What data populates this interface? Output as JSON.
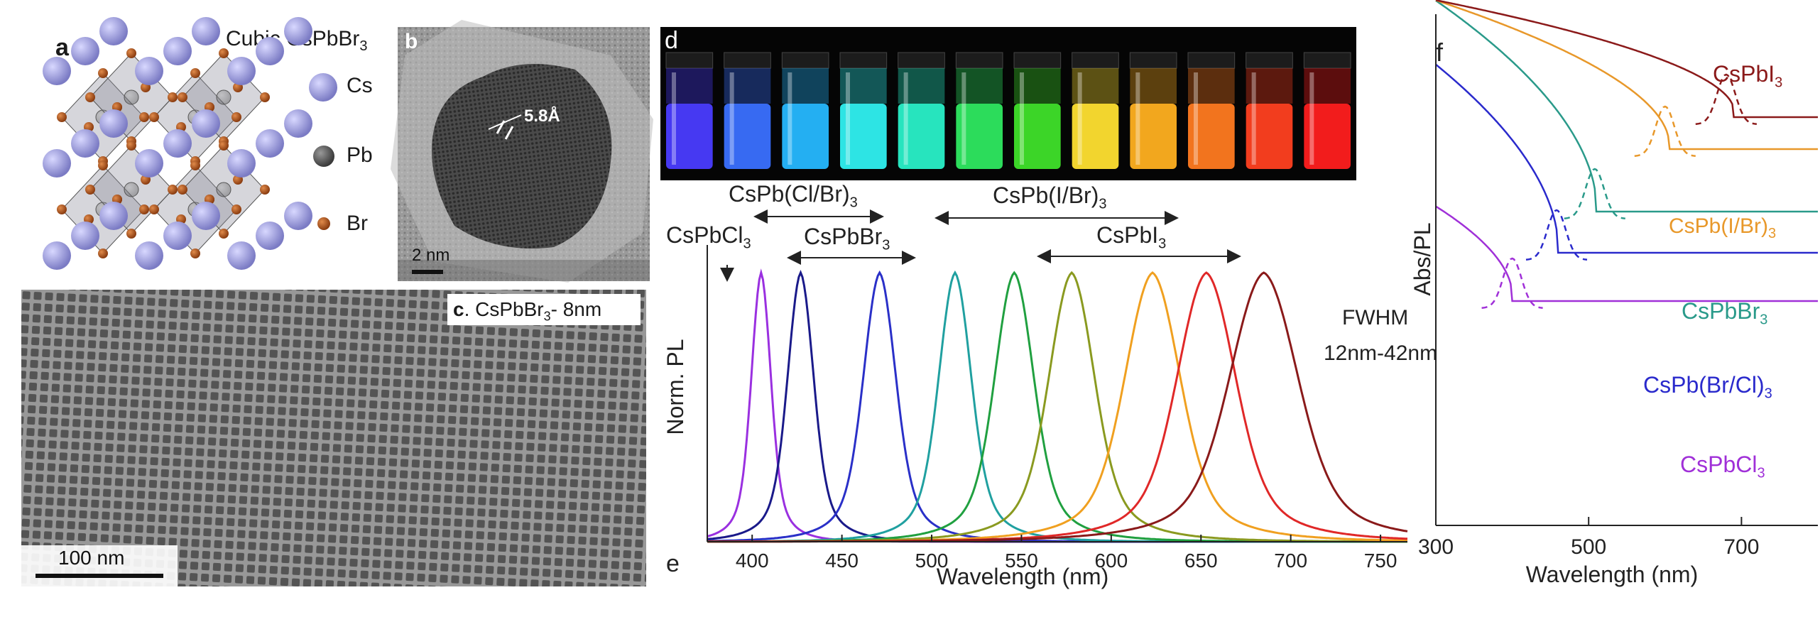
{
  "panel_a": {
    "label": "a",
    "title_prefix": "Cubic CsPbBr",
    "title_sub": "3",
    "legend": [
      {
        "name": "Cs",
        "color": "#9b9bd6"
      },
      {
        "name": "Pb",
        "color": "#555555"
      },
      {
        "name": "Br",
        "color": "#a8541a"
      }
    ]
  },
  "panel_b": {
    "label": "b",
    "spacing": "5.8Å",
    "scalebar": "2 nm"
  },
  "panel_c": {
    "label": "c",
    "caption_prefix": ". CsPbBr",
    "caption_sub": "3",
    "caption_suffix": "- 8nm",
    "scalebar": "100 nm"
  },
  "panel_d": {
    "label": "d",
    "vial_colors": [
      "#4a3cff",
      "#3a70ff",
      "#26b8ff",
      "#2ff0f0",
      "#29f0c8",
      "#2ee860",
      "#3fe02a",
      "#ffe030",
      "#ffb020",
      "#ff7a20",
      "#ff4020",
      "#ff1e1e"
    ]
  },
  "panel_e": {
    "label": "e",
    "fwhm_line1": "FWHM",
    "fwhm_line2": "12nm-42nm",
    "annotations": {
      "cl_br": {
        "prefix": "CsPb(Cl/Br)",
        "sub": "3"
      },
      "i_br": {
        "prefix": "CsPb(I/Br)",
        "sub": "3"
      },
      "cl": {
        "prefix": "CsPbCl",
        "sub": "3"
      },
      "br": {
        "prefix": "CsPbBr",
        "sub": "3"
      },
      "i": {
        "prefix": "CsPbI",
        "sub": "3"
      }
    }
  },
  "panel_f": {
    "label": "f",
    "curves": [
      {
        "prefix": "CsPbI",
        "sub": "3",
        "color": "#8b1a1a"
      },
      {
        "prefix": "CsPb(I/Br)",
        "sub": "3",
        "color": "#e8982a"
      },
      {
        "prefix": "CsPbBr",
        "sub": "3",
        "color": "#2a9a8a"
      },
      {
        "prefix": "CsPb(Br/Cl)",
        "sub": "3",
        "color": "#2a2acc"
      },
      {
        "prefix": "CsPbCl",
        "sub": "3",
        "color": "#a030d8"
      }
    ]
  },
  "chart_data": [
    {
      "type": "line",
      "title": "",
      "xlabel": "Wavelength (nm)",
      "ylabel": "Norm. PL",
      "xlim": [
        375,
        765
      ],
      "ylim": [
        0,
        1.05
      ],
      "x_ticks": [
        400,
        450,
        500,
        550,
        600,
        650,
        700,
        750
      ],
      "series": [
        {
          "name": "CsPbCl3",
          "peak": 405,
          "fwhm": 12,
          "color": "#9a30e0"
        },
        {
          "name": "CsPb(Cl/Br)3 a",
          "peak": 427,
          "fwhm": 16,
          "color": "#1a1a8a"
        },
        {
          "name": "CsPb(Cl/Br)3 b",
          "peak": 471,
          "fwhm": 20,
          "color": "#2a30c8"
        },
        {
          "name": "CsPbBr3",
          "peak": 513,
          "fwhm": 20,
          "color": "#20a0a0"
        },
        {
          "name": "CsPb(I/Br)3 a",
          "peak": 546,
          "fwhm": 24,
          "color": "#20a040"
        },
        {
          "name": "CsPb(I/Br)3 b",
          "peak": 578,
          "fwhm": 28,
          "color": "#8a9a20"
        },
        {
          "name": "CsPb(I/Br)3 c",
          "peak": 623,
          "fwhm": 34,
          "color": "#f0a020"
        },
        {
          "name": "CsPb(I/Br)3 d",
          "peak": 653,
          "fwhm": 36,
          "color": "#e02828"
        },
        {
          "name": "CsPbI3",
          "peak": 685,
          "fwhm": 42,
          "color": "#8a1a1a"
        }
      ]
    },
    {
      "type": "line",
      "title": "",
      "xlabel": "Wavelength (nm)",
      "ylabel": "Abs/PL",
      "xlim": [
        300,
        800
      ],
      "x_ticks": [
        300,
        500,
        700
      ],
      "series": [
        {
          "name": "CsPbCl3",
          "edge": 400,
          "pl_peak": 400
        },
        {
          "name": "CsPb(Br/Cl)3",
          "edge": 460,
          "pl_peak": 458
        },
        {
          "name": "CsPbBr3",
          "edge": 510,
          "pl_peak": 508
        },
        {
          "name": "CsPb(I/Br)3",
          "edge": 605,
          "pl_peak": 600
        },
        {
          "name": "CsPbI3",
          "edge": 690,
          "pl_peak": 680
        }
      ]
    }
  ]
}
